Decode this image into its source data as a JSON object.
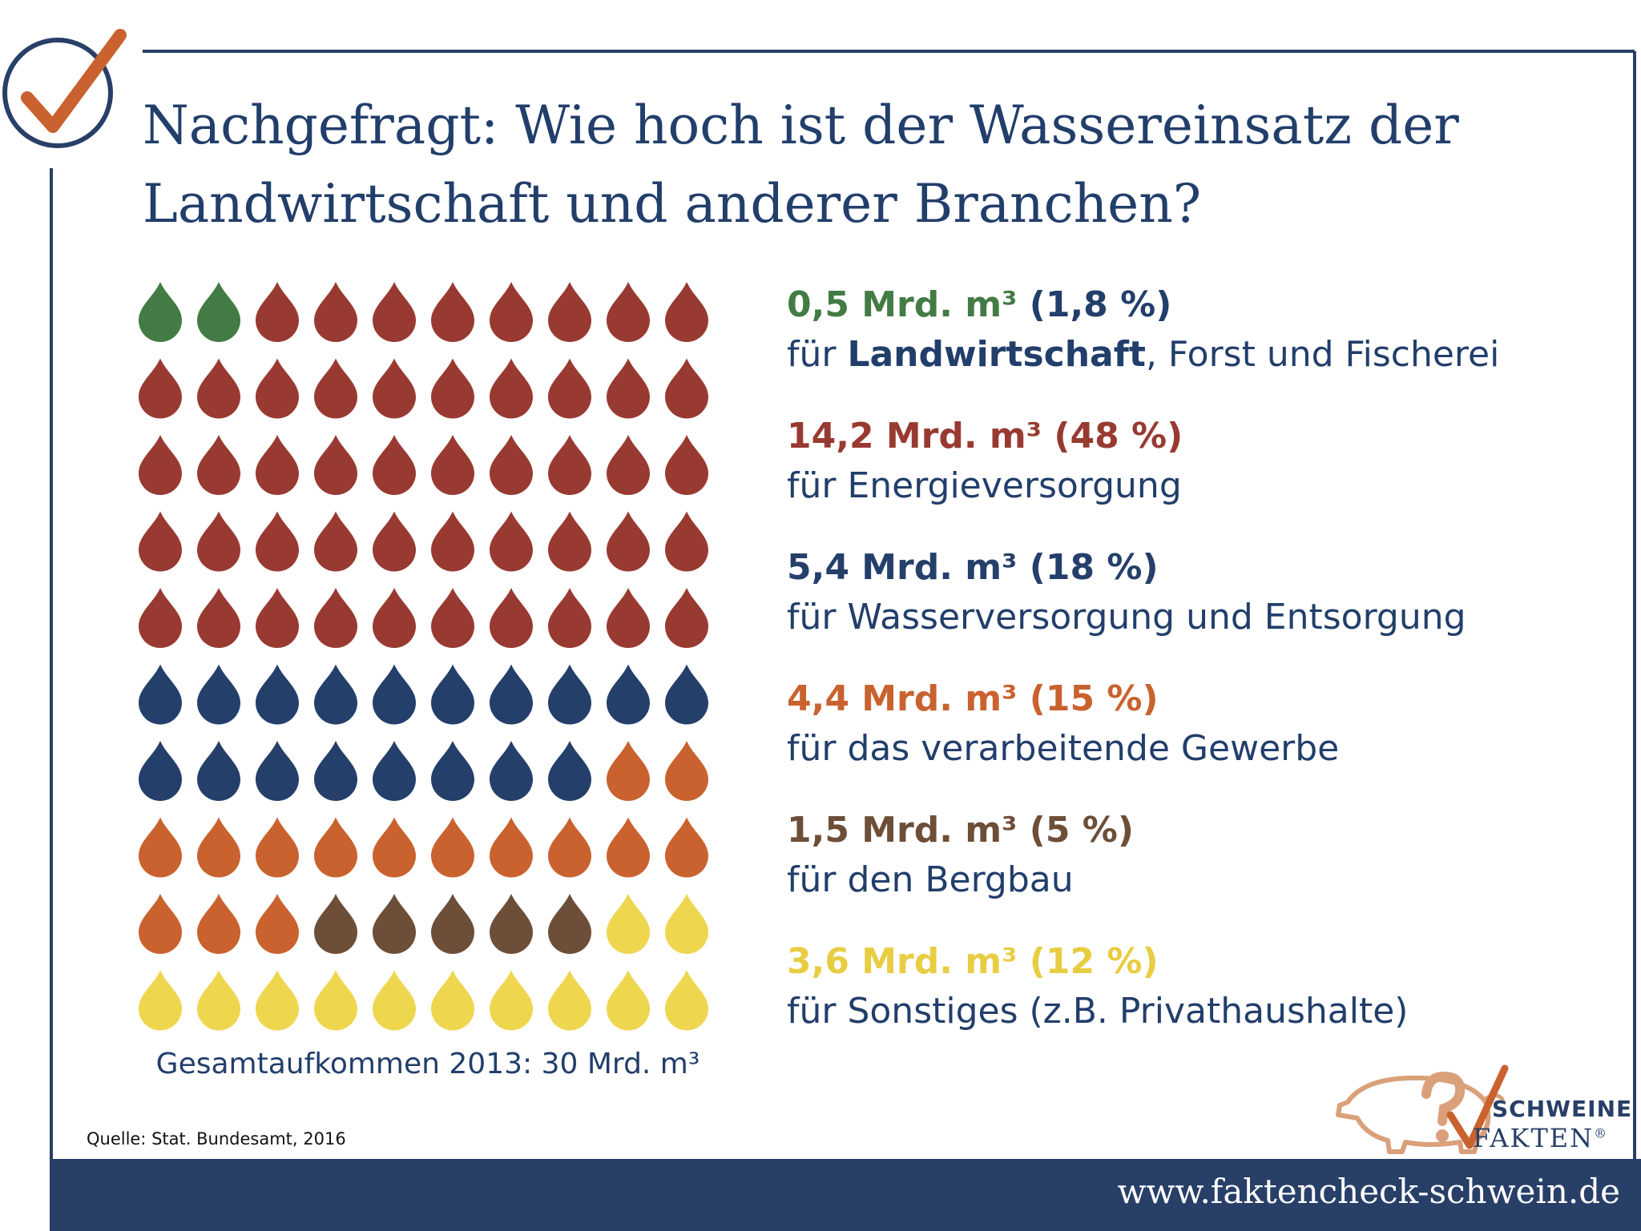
{
  "header": {
    "title_line1": "Nachgefragt: Wie hoch ist der Wassereinsatz der",
    "title_line2": "Landwirtschaft und anderer Branchen?"
  },
  "colors": {
    "frame": "#283f68",
    "checkmark": "#c9622e"
  },
  "chart_data": {
    "type": "waffle",
    "title": "Nachgefragt: Wie hoch ist der Wassereinsatz der Landwirtschaft und anderer Branchen?",
    "unit": "Mrd. m³",
    "total_label": "Gesamtaufkommen 2013: 30 Mrd. m³",
    "grid": {
      "rows": 10,
      "cols": 10
    },
    "series": [
      {
        "value_label": "0,5 Mrd. m³",
        "percent_label": "(1,8 %)",
        "desc_pre": "für ",
        "desc_bold": "Landwirtschaft",
        "desc_post": ", Forst und Fischerei",
        "value": 0.5,
        "percent": 1.8,
        "drops": 2,
        "color": "#437b44"
      },
      {
        "value_label": "14,2 Mrd. m³",
        "percent_label": "(48 %)",
        "desc_pre": "für Energieversorgung",
        "desc_bold": "",
        "desc_post": "",
        "value": 14.2,
        "percent": 48,
        "drops": 48,
        "color": "#983a31"
      },
      {
        "value_label": "5,4 Mrd. m³",
        "percent_label": "(18 %)",
        "desc_pre": "für Wasserversorgung und Entsorgung",
        "desc_bold": "",
        "desc_post": "",
        "value": 5.4,
        "percent": 18,
        "drops": 18,
        "color": "#253f6b"
      },
      {
        "value_label": "4,4 Mrd. m³",
        "percent_label": "(15 %)",
        "desc_pre": "für das verarbeitende Gewerbe",
        "desc_bold": "",
        "desc_post": "",
        "value": 4.4,
        "percent": 15,
        "drops": 15,
        "color": "#c9622e"
      },
      {
        "value_label": "1,5 Mrd. m³",
        "percent_label": "(5 %)",
        "desc_pre": "für den Bergbau",
        "desc_bold": "",
        "desc_post": "",
        "value": 1.5,
        "percent": 5,
        "drops": 5,
        "color": "#6d4e38"
      },
      {
        "value_label": "3,6 Mrd. m³",
        "percent_label": "(12 %)",
        "desc_pre": "für Sonstiges (z.B. Privathaushalte)",
        "desc_bold": "",
        "desc_post": "",
        "value": 3.6,
        "percent": 12,
        "drops": 12,
        "color": "#efd64f"
      }
    ]
  },
  "source": "Quelle: Stat. Bundesamt, 2016",
  "logo": {
    "line1": "SCHWEINE",
    "line2": "FAKTEN",
    "mark": "®",
    "icon": "pig-question-check-icon"
  },
  "footer": {
    "url": "www.faktencheck-schwein.de"
  }
}
